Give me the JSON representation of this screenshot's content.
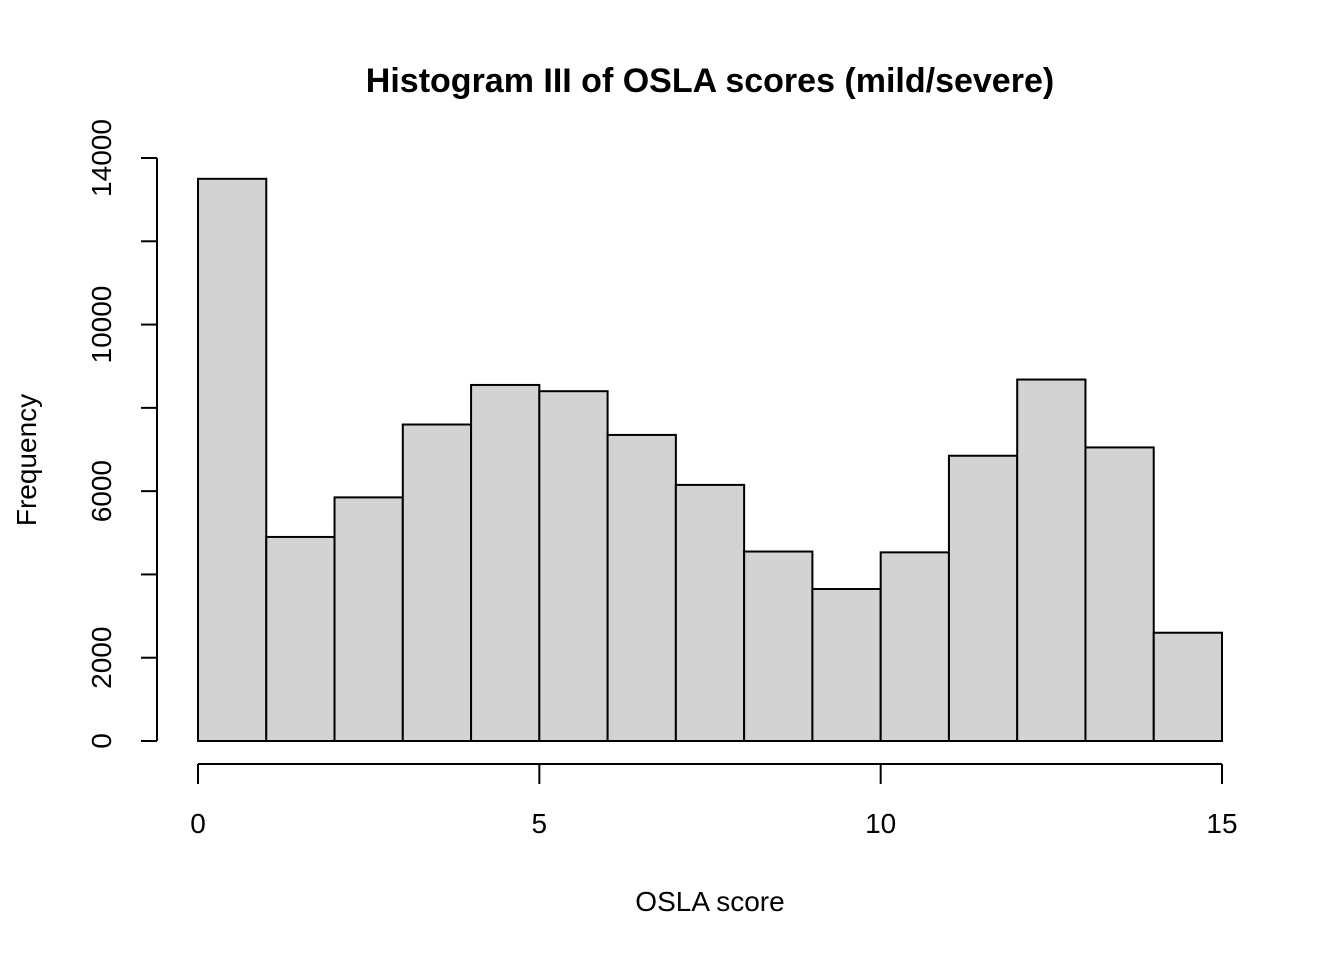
{
  "chart_data": {
    "type": "bar",
    "title": "Histogram III of OSLA scores (mild/severe)",
    "xlabel": "OSLA score",
    "ylabel": "Frequency",
    "bin_edges": [
      0,
      1,
      2,
      3,
      4,
      5,
      6,
      7,
      8,
      9,
      10,
      11,
      12,
      13,
      14,
      15
    ],
    "values": [
      13500,
      4900,
      5850,
      7600,
      8550,
      8400,
      7350,
      6150,
      4550,
      3650,
      4530,
      6850,
      8680,
      7050,
      2600
    ],
    "xlim": [
      0,
      15
    ],
    "ylim": [
      0,
      14000
    ],
    "x_ticks": [
      0,
      5,
      10,
      15
    ],
    "x_tick_labels": [
      "0",
      "5",
      "10",
      "15"
    ],
    "y_ticks": [
      0,
      2000,
      4000,
      6000,
      8000,
      10000,
      12000,
      14000
    ],
    "y_tick_labels": [
      "0",
      "2000",
      "",
      "6000",
      "",
      "10000",
      "",
      "14000"
    ],
    "bar_color": "#d3d3d3",
    "edge_color": "#000000",
    "grid": false,
    "legend": "none"
  }
}
